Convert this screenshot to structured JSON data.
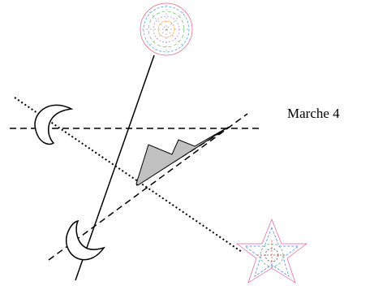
{
  "label": "Marche 4"
}
